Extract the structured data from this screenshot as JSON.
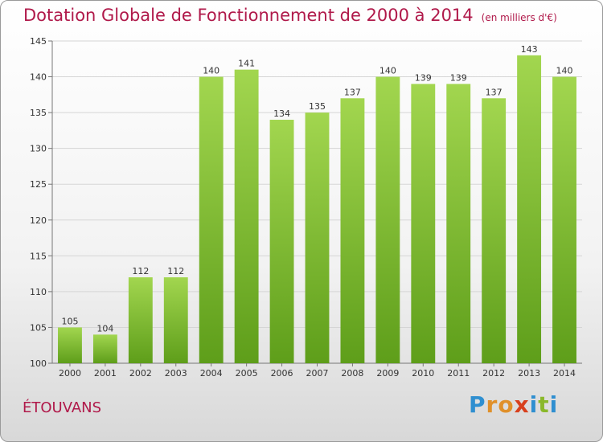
{
  "title": "Dotation Globale de Fonctionnement de 2000 à 2014",
  "unit": "(en milliers d'€)",
  "commune": "ÉTOUVANS",
  "logo": {
    "letters": [
      "P",
      "r",
      "o",
      "x",
      "i",
      "t",
      "i"
    ],
    "colors": [
      "#2f8fd0",
      "#e0902a",
      "#e0902a",
      "#d8401d",
      "#2f8fd0",
      "#8ab82a",
      "#2f8fd0"
    ]
  },
  "colors": {
    "bar_top": "#a2d64f",
    "bar_bottom": "#5e9e1a",
    "grid": "#d5d5d5",
    "axis": "#777777",
    "title": "#b0194a"
  },
  "chart_data": {
    "type": "bar",
    "title": "Dotation Globale de Fonctionnement de 2000 à 2014",
    "xlabel": "",
    "ylabel": "",
    "categories": [
      "2000",
      "2001",
      "2002",
      "2003",
      "2004",
      "2005",
      "2006",
      "2007",
      "2008",
      "2009",
      "2010",
      "2011",
      "2012",
      "2013",
      "2014"
    ],
    "values": [
      105,
      104,
      112,
      112,
      140,
      141,
      134,
      135,
      137,
      140,
      139,
      139,
      137,
      143,
      140
    ],
    "ylim": [
      100,
      145
    ],
    "yticks": [
      100,
      105,
      110,
      115,
      120,
      125,
      130,
      135,
      140,
      145
    ],
    "grid": true
  }
}
